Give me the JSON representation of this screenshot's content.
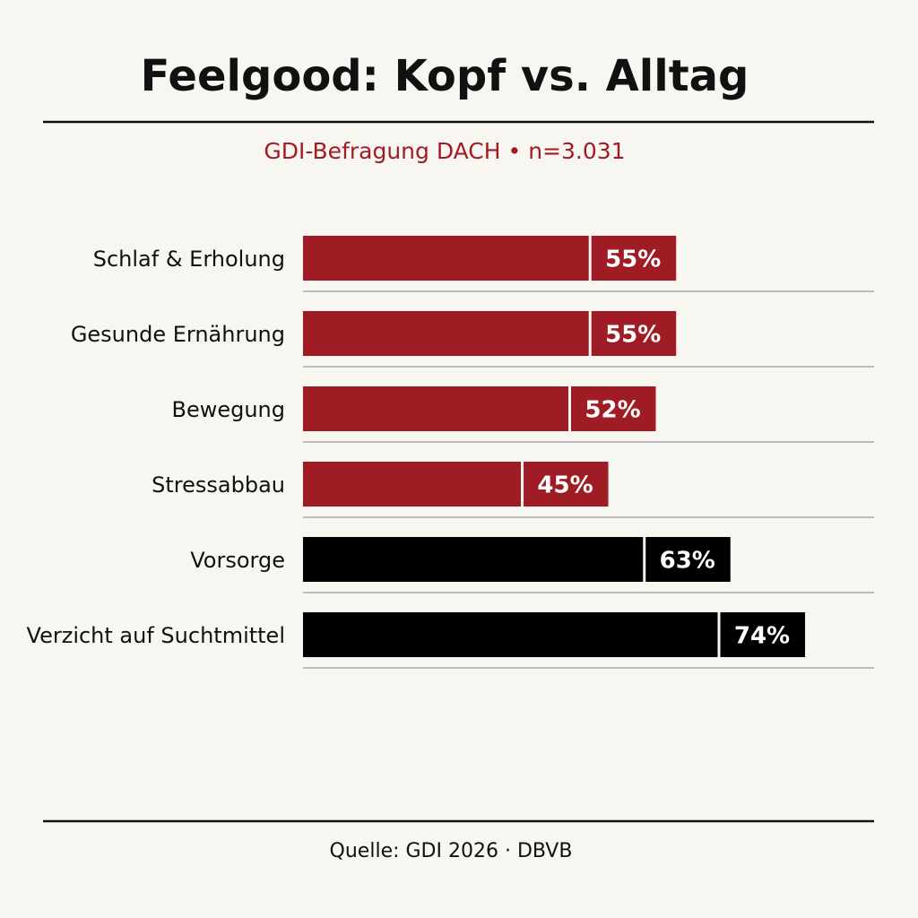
{
  "chart_data": {
    "type": "bar",
    "orientation": "horizontal",
    "title": "Feelgood: Kopf vs. Alltag",
    "subtitle": "GDI-Befragung DACH • n=3.031",
    "categories": [
      "Schlaf & Erholung",
      "Gesunde Ernährung",
      "Bewegung",
      "Stressabbau",
      "Vorsorge",
      "Verzicht auf Suchtmittel"
    ],
    "values": [
      55,
      55,
      52,
      45,
      63,
      74
    ],
    "value_labels": [
      "55%",
      "55%",
      "52%",
      "45%",
      "63%",
      "74%"
    ],
    "colors": [
      "#a01c24",
      "#a01c24",
      "#a01c24",
      "#a01c24",
      "#000000",
      "#000000"
    ],
    "source": "Quelle: GDI 2026 · DBVB"
  }
}
